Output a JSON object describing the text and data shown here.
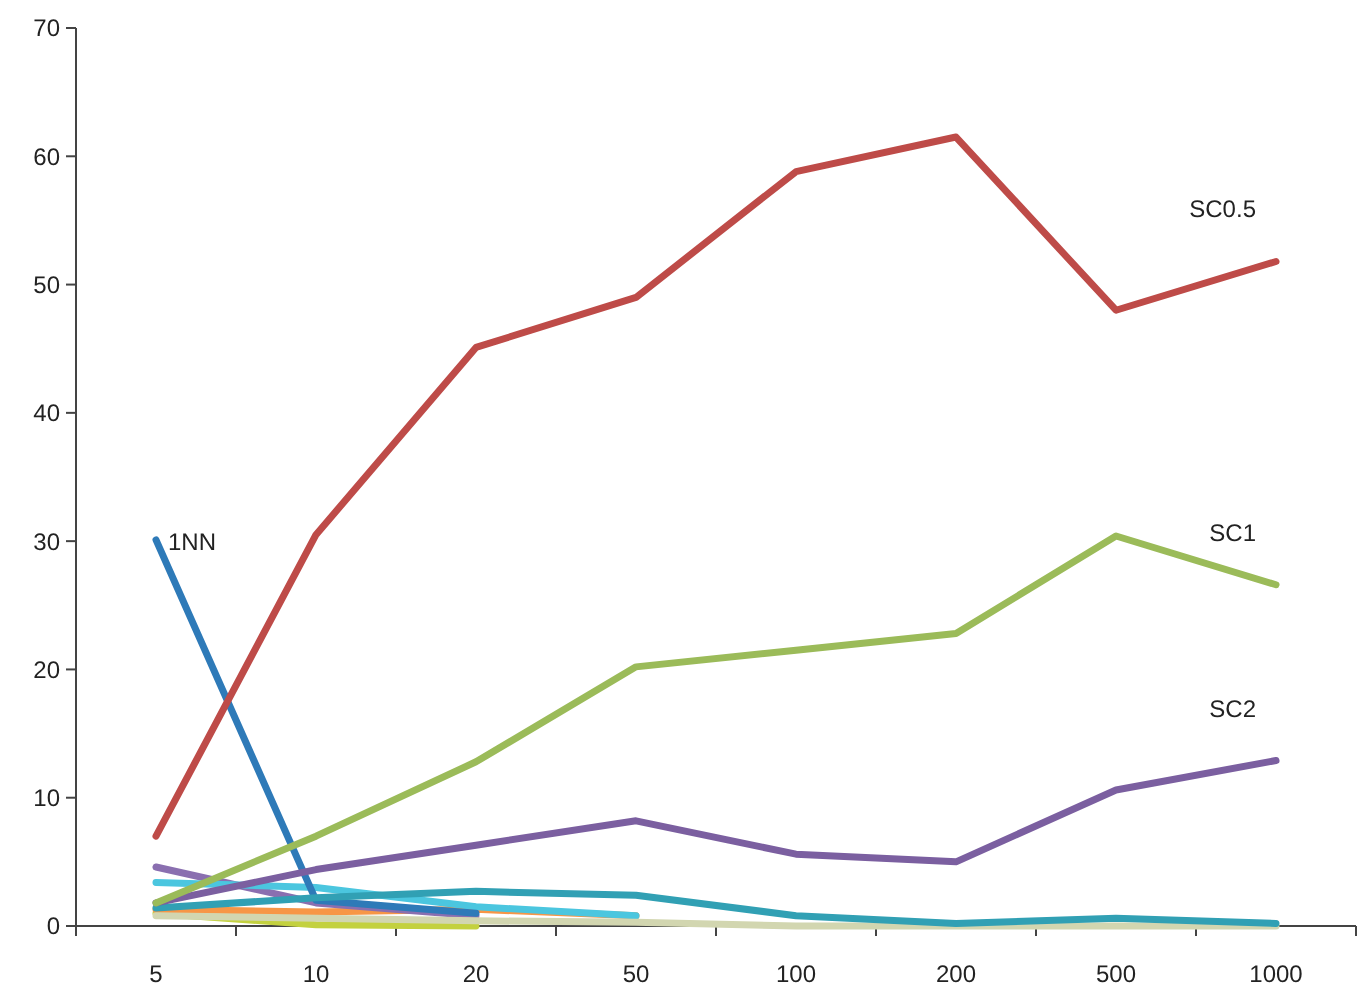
{
  "chart_data": {
    "type": "line",
    "categories": [
      "5",
      "10",
      "20",
      "50",
      "100",
      "200",
      "500",
      "1000"
    ],
    "ylim": [
      0,
      70
    ],
    "yticks": [
      0,
      10,
      20,
      30,
      40,
      50,
      60,
      70
    ],
    "grid": false,
    "marker": "none",
    "line_style": "solid",
    "series": [
      {
        "name": null,
        "color": "#c3d13f",
        "values": [
          1.0,
          0.1,
          0.0,
          null,
          null,
          null,
          null,
          null
        ]
      },
      {
        "name": null,
        "color": "#f79646",
        "values": [
          1.3,
          1.1,
          1.3,
          0.8,
          null,
          null,
          null,
          null
        ]
      },
      {
        "name": null,
        "color": "#8a6fb0",
        "values": [
          4.6,
          1.8,
          0.8,
          null,
          null,
          null,
          null,
          null
        ]
      },
      {
        "name": null,
        "color": "#4bc6df",
        "values": [
          3.4,
          3.0,
          1.5,
          0.8,
          null,
          null,
          null,
          null
        ]
      },
      {
        "name": "1NN",
        "color": "#2e7ab8",
        "values": [
          30.1,
          2.0,
          1.0,
          null,
          null,
          null,
          null,
          null
        ]
      },
      {
        "name": null,
        "color": "#d2d6b0",
        "values": [
          0.8,
          0.6,
          0.4,
          0.3,
          0.0,
          0.0,
          0.0,
          0.0
        ]
      },
      {
        "name": null,
        "color": "#31a0b4",
        "values": [
          1.4,
          2.2,
          2.7,
          2.4,
          0.8,
          0.2,
          0.6,
          0.2
        ]
      },
      {
        "name": "SC2",
        "color": "#7b5fa0",
        "values": [
          1.8,
          4.4,
          6.3,
          8.2,
          5.6,
          5.0,
          10.6,
          12.9
        ]
      },
      {
        "name": "SC1",
        "color": "#9bbb59",
        "values": [
          1.8,
          7.0,
          12.8,
          20.2,
          21.5,
          22.8,
          30.4,
          26.6
        ]
      },
      {
        "name": "SC0.5",
        "color": "#be4b48",
        "values": [
          7.0,
          30.5,
          45.1,
          49.0,
          58.8,
          61.5,
          48.0,
          51.8
        ]
      }
    ]
  }
}
